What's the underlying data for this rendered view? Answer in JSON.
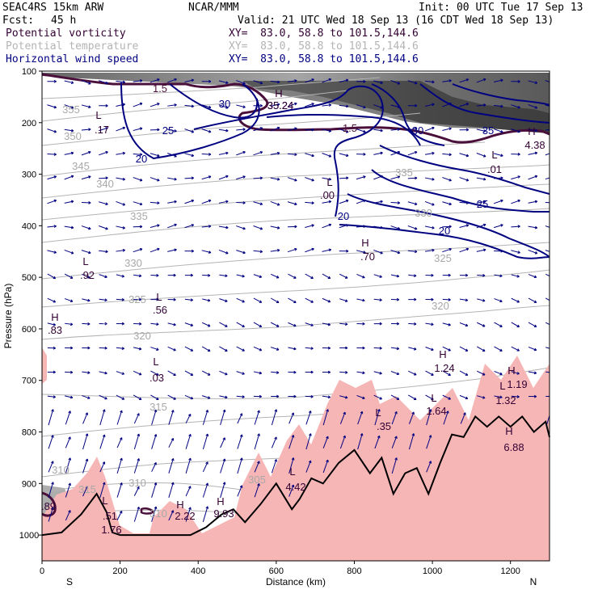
{
  "header": {
    "model": "SEAC4RS 15km ARW",
    "org": "NCAR/MMM",
    "init": "Init: 00 UTC Tue 17 Sep 13",
    "fcst_label": "Fcst:",
    "fcst_value": "45 h",
    "valid": "Valid: 21 UTC Wed 18 Sep 13 (16 CDT Wed 18 Sep 13)",
    "fields": [
      {
        "name": "Potential vorticity",
        "xy": "XY=  83.0, 58.8 to 101.5,144.6",
        "color": "#330033"
      },
      {
        "name": "Potential temperature",
        "xy": "XY=  83.0, 58.8 to 101.5,144.6",
        "color": "#b4b4b4"
      },
      {
        "name": "Horizontal wind speed",
        "xy": "XY=  83.0, 58.8 to 101.5,144.6",
        "color": "#000080"
      }
    ]
  },
  "chart_data": {
    "type": "cross-section",
    "xlabel": "Distance (km)",
    "ylabel": "Pressure (hPa)",
    "xlim": [
      0,
      1300
    ],
    "ylim": [
      1050,
      100
    ],
    "x_ticks": [
      "0",
      "200",
      "400",
      "600",
      "800",
      "1000",
      "1200"
    ],
    "y_ticks": [
      "100",
      "200",
      "300",
      "400",
      "500",
      "600",
      "700",
      "800",
      "900",
      "1000"
    ],
    "x_end_labels": {
      "left": "S",
      "right": "N"
    },
    "terrain_pressure": {
      "x": [
        0,
        50,
        100,
        140,
        165,
        180,
        200,
        260,
        300,
        380,
        420,
        460,
        490,
        520,
        560,
        600,
        640,
        660,
        690,
        720,
        760,
        800,
        840,
        870,
        900,
        930,
        960,
        990,
        1020,
        1050,
        1080,
        1110,
        1140,
        1170,
        1200,
        1230,
        1260,
        1290,
        1300
      ],
      "p": [
        1000,
        995,
        960,
        920,
        955,
        995,
        1000,
        1000,
        1000,
        1000,
        985,
        960,
        950,
        975,
        940,
        900,
        950,
        930,
        890,
        900,
        860,
        835,
        880,
        850,
        920,
        880,
        870,
        920,
        860,
        805,
        810,
        770,
        790,
        770,
        790,
        770,
        800,
        780,
        810
      ]
    },
    "wind_speed_labels": [
      "30",
      "25",
      "20",
      "20",
      "20",
      "25",
      "30",
      "35",
      "35.24"
    ],
    "pv_labels": [
      "1.5",
      "1.5"
    ],
    "theta_labels": [
      "310",
      "355",
      "350",
      "345",
      "340",
      "335",
      "335",
      "330",
      "330",
      "325",
      "325",
      "320",
      "320",
      "315",
      "315",
      "310",
      "310",
      "305"
    ],
    "extrema": [
      {
        "kind": "L",
        "value": ".17"
      },
      {
        "kind": "H",
        "value": "35.24"
      },
      {
        "kind": "L",
        "value": ".00"
      },
      {
        "kind": "L",
        "value": ".01"
      },
      {
        "kind": "H",
        "value": "4.38"
      },
      {
        "kind": "H",
        "value": ".70"
      },
      {
        "kind": "L",
        "value": ".92"
      },
      {
        "kind": "L",
        "value": ".56"
      },
      {
        "kind": "H",
        "value": ".83"
      },
      {
        "kind": "L",
        "value": ".03"
      },
      {
        "kind": "H",
        "value": "1.24"
      },
      {
        "kind": "H",
        "value": "1.19"
      },
      {
        "kind": "L",
        "value": "1.32"
      },
      {
        "kind": "L",
        "value": "1.64"
      },
      {
        "kind": "L",
        "value": ".35"
      },
      {
        "kind": "H",
        "value": "6.88"
      },
      {
        "kind": "L",
        "value": "4.42"
      },
      {
        "kind": "H",
        "value": "2.22"
      },
      {
        "kind": "H",
        "value": "9.93"
      },
      {
        "kind": "L",
        "value": ".51"
      },
      {
        "kind": "",
        "value": "1.76"
      },
      {
        "kind": "",
        "value": ".89"
      }
    ],
    "colors": {
      "pv": "#4a0f3a",
      "theta": "#b4b4b4",
      "wind": "#000080",
      "terrain_fill": "#f7b6b6",
      "shade_dark": "#555555"
    }
  }
}
